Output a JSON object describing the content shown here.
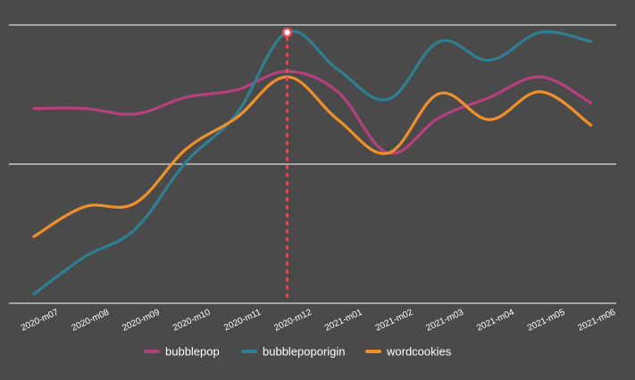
{
  "chart_data": {
    "type": "line",
    "categories": [
      "2020-m07",
      "2020-m08",
      "2020-m09",
      "2020-m10",
      "2020-m11",
      "2020-m12",
      "2021-m01",
      "2021-m02",
      "2021-m03",
      "2021-m04",
      "2021-m05",
      "2021-m06"
    ],
    "series": [
      {
        "name": "bubblepop",
        "color": "#b5407d",
        "values": [
          55,
          55,
          52,
          61,
          65,
          75,
          64,
          31,
          50,
          61,
          72,
          58
        ]
      },
      {
        "name": "bubblepoporigin",
        "color": "#2f7f93",
        "values": [
          -45,
          -25,
          -10,
          26,
          52,
          96,
          76,
          60,
          91,
          81,
          96,
          91
        ]
      },
      {
        "name": "wordcookies",
        "color": "#f0902a",
        "values": [
          -14,
          2,
          4,
          33,
          50,
          72,
          49,
          31,
          63,
          49,
          64,
          46
        ]
      }
    ],
    "highlight": {
      "category": "2020-m12",
      "series": "bubblepoporigin",
      "color": "#e24a58"
    },
    "grid": true,
    "legend": "bottom"
  }
}
